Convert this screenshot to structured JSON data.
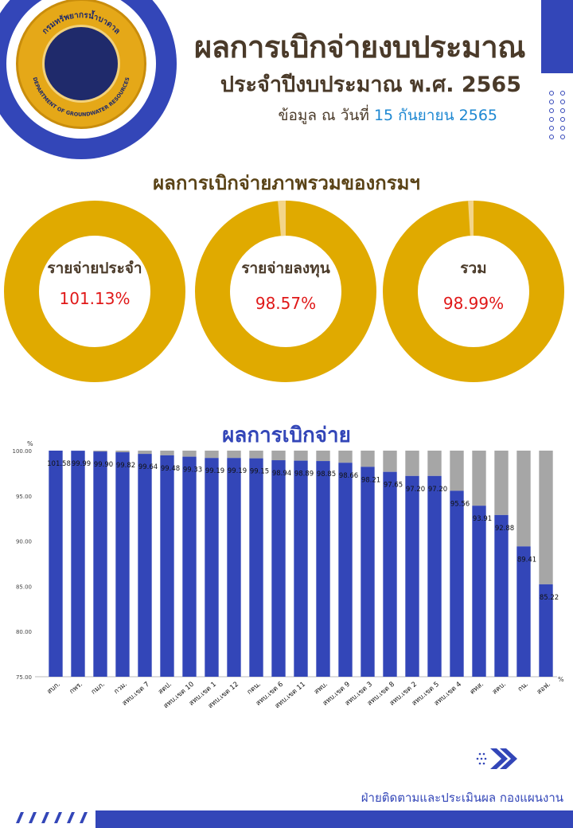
{
  "header": {
    "logo_text_top": "กรมทรัพยากรน้ำบาดาล",
    "logo_text_bottom": "DEPARTMENT OF GROUNDWATER RESOURCES",
    "title": "ผลการเบิกจ่ายงบประมาณ",
    "subtitle": "ประจำปีงบประมาณ พ.ศ. 2565",
    "date_prefix": "ข้อมูล ณ วันที่",
    "date_value": "15 กันยายน 2565"
  },
  "overview": {
    "title": "ผลการเบิกจ่ายภาพรวมของกรมฯ",
    "donuts": [
      {
        "label": "รายจ่ายประจำ",
        "value_text": "101.13%",
        "percent": 101.13
      },
      {
        "label": "รายจ่ายลงทุน",
        "value_text": "98.57%",
        "percent": 98.57
      },
      {
        "label": "รวม",
        "value_text": "98.99%",
        "percent": 98.99
      }
    ]
  },
  "colors": {
    "donut_fill": "#e0aa00",
    "donut_remainder": "#f3d58a",
    "bar_fill": "#3346b8",
    "bar_remainder": "#a6a6a6",
    "brand_blue": "#3346b8",
    "value_red": "#e01818"
  },
  "chart_data": {
    "type": "bar",
    "title": "ผลการเบิกจ่าย",
    "ylabel": "%",
    "xlabel": "%",
    "ylim": [
      75,
      100
    ],
    "yticks": [
      "75.00",
      "80.00",
      "85.00",
      "90.00",
      "95.00",
      "100.00"
    ],
    "categories": [
      "สบก.",
      "กพร.",
      "กมภ.",
      "กวม.",
      "สทบ.เขต 7",
      "สตป.",
      "สทบ.เขต 10",
      "สทบ.เขต 1",
      "สทบ.เขต 12",
      "กตน.",
      "สทบ.เขต 6",
      "สทบ.เขต 11",
      "สพบ.",
      "สทบ.เขต 9",
      "สทบ.เขต 3",
      "สทบ.เขต 8",
      "สทบ.เขต 2",
      "สทบ.เขต 5",
      "สทบ.เขต 4",
      "ศทส.",
      "สคบ.",
      "กน.",
      "สอฟ."
    ],
    "values": [
      101.58,
      99.99,
      99.9,
      99.82,
      99.64,
      99.48,
      99.33,
      99.19,
      99.19,
      99.15,
      98.94,
      98.89,
      98.85,
      98.66,
      98.21,
      97.65,
      97.2,
      97.2,
      95.56,
      93.91,
      92.88,
      89.41,
      85.22
    ],
    "value_labels": [
      "101.58",
      "99.99",
      "99.90",
      "99.82",
      "99.64",
      "99.48",
      "99.33",
      "99.19",
      "99.19",
      "99.15",
      "98.94",
      "98.89",
      "98.85",
      "98.66",
      "98.21",
      "97.65",
      "97.20",
      "97.20",
      "95.56",
      "93.91",
      "92.88",
      "89.41",
      "85.22"
    ],
    "grid": false,
    "legend": "none"
  },
  "footer": {
    "text": "ฝ่ายติดตามและประเมินผล กองแผนงาน"
  }
}
